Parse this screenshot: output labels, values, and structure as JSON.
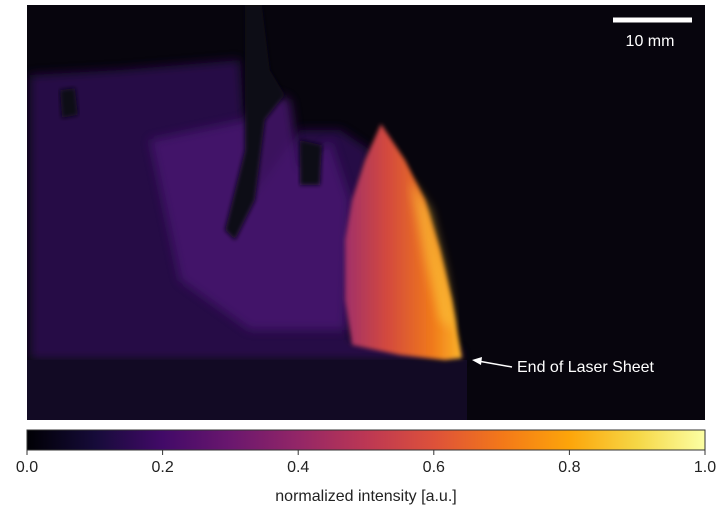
{
  "image": {
    "scale_bar_label": "10 mm",
    "annotation": "End of Laser Sheet"
  },
  "colorbar": {
    "label": "normalized intensity [a.u.]",
    "lim": [
      0,
      1
    ],
    "ticks": [
      {
        "value": 0,
        "label": "0.0"
      },
      {
        "value": 0.2,
        "label": "0.2"
      },
      {
        "value": 0.4,
        "label": "0.4"
      },
      {
        "value": 0.6,
        "label": "0.6"
      },
      {
        "value": 0.8,
        "label": "0.8"
      },
      {
        "value": 1,
        "label": "1.0"
      }
    ]
  }
}
